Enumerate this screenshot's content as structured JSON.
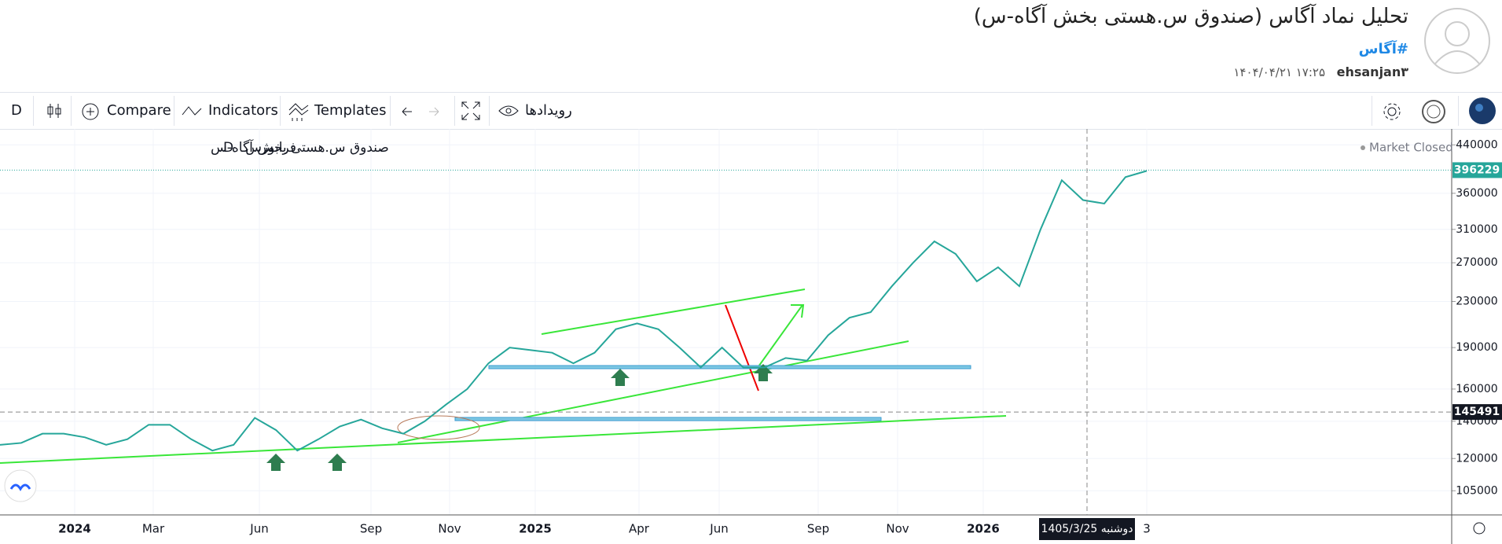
{
  "header": {
    "title": "تحلیل نماد آگاس (صندوق س.هستی بخش آگاه-س)",
    "tag": "#آگاس",
    "author": "ehsanjan۳",
    "datetime": "۱۷:۲۵ ۱۴۰۴/۰۴/۲۱"
  },
  "toolbar": {
    "interval": "D",
    "compare": "Compare",
    "indicators": "Indicators",
    "templates": "Templates",
    "events": "رویدادها"
  },
  "chart_data": {
    "type": "line",
    "legend": {
      "symbol": "صندوق س.هستی بخش آگاه-س",
      "interval": "D",
      "exchange": "فرابورس",
      "status": "Market Closed"
    },
    "x_labels": [
      "2024",
      "Mar",
      "Jun",
      "Sep",
      "Nov",
      "2025",
      "Apr",
      "Jun",
      "Sep",
      "Nov",
      "2026",
      "3"
    ],
    "crosshair_date": "1405/3/25 دوشنبه",
    "color": "#26a69a",
    "values": [
      127000,
      128000,
      133000,
      133000,
      131000,
      127000,
      130000,
      138000,
      138000,
      130000,
      124000,
      127000,
      142000,
      135000,
      124000,
      130000,
      137000,
      141000,
      136000,
      133000,
      140000,
      150000,
      160000,
      178000,
      190000,
      188000,
      186000,
      178000,
      186000,
      205000,
      210000,
      205000,
      190000,
      175000,
      190000,
      175000,
      175000,
      182000,
      180000,
      200000,
      215000,
      220000,
      245000,
      270000,
      295000,
      280000,
      250000,
      265000,
      245000,
      310000,
      380000,
      350000,
      345000,
      385000,
      395000
    ],
    "ylim": [
      95000,
      470000
    ],
    "yticks": [
      105000,
      120000,
      140000,
      160000,
      190000,
      230000,
      270000,
      310000,
      360000,
      440000
    ],
    "log_scale": true,
    "grid": true,
    "last_price": 396229,
    "crosshair_price": 145491
  }
}
